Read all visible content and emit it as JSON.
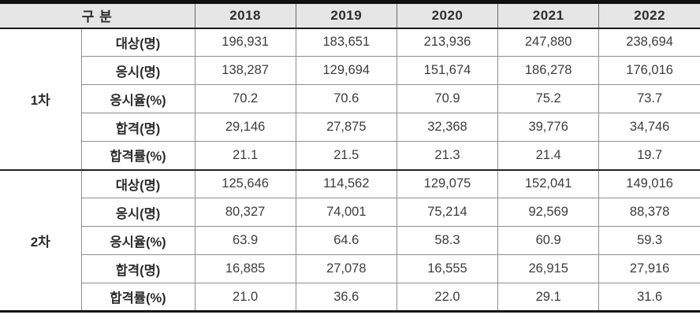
{
  "table": {
    "header": {
      "group_label": "구 분",
      "years": [
        "2018",
        "2019",
        "2020",
        "2021",
        "2022"
      ]
    },
    "sections": [
      {
        "group": "1차",
        "rows": [
          {
            "label": "대상(명)",
            "values": [
              "196,931",
              "183,651",
              "213,936",
              "247,880",
              "238,694"
            ]
          },
          {
            "label": "응시(명)",
            "values": [
              "138,287",
              "129,694",
              "151,674",
              "186,278",
              "176,016"
            ]
          },
          {
            "label": "응시율(%)",
            "values": [
              "70.2",
              "70.6",
              "70.9",
              "75.2",
              "73.7"
            ]
          },
          {
            "label": "합격(명)",
            "values": [
              "29,146",
              "27,875",
              "32,368",
              "39,776",
              "34,746"
            ]
          },
          {
            "label": "합격률(%)",
            "values": [
              "21.1",
              "21.5",
              "21.3",
              "21.4",
              "19.7"
            ]
          }
        ]
      },
      {
        "group": "2차",
        "rows": [
          {
            "label": "대상(명)",
            "values": [
              "125,646",
              "114,562",
              "129,075",
              "152,041",
              "149,016"
            ]
          },
          {
            "label": "응시(명)",
            "values": [
              "80,327",
              "74,001",
              "75,214",
              "92,569",
              "88,378"
            ]
          },
          {
            "label": "응시율(%)",
            "values": [
              "63.9",
              "64.6",
              "58.3",
              "60.9",
              "59.3"
            ]
          },
          {
            "label": "합격(명)",
            "values": [
              "16,885",
              "27,078",
              "16,555",
              "26,915",
              "27,916"
            ]
          },
          {
            "label": "합격률(%)",
            "values": [
              "21.0",
              "36.6",
              "22.0",
              "29.1",
              "31.6"
            ]
          }
        ]
      }
    ],
    "colors": {
      "header_bg": "#e6e6e6",
      "border_dark": "#111111",
      "border_light": "#8f8f8f",
      "text": "#3c3c3c"
    }
  }
}
